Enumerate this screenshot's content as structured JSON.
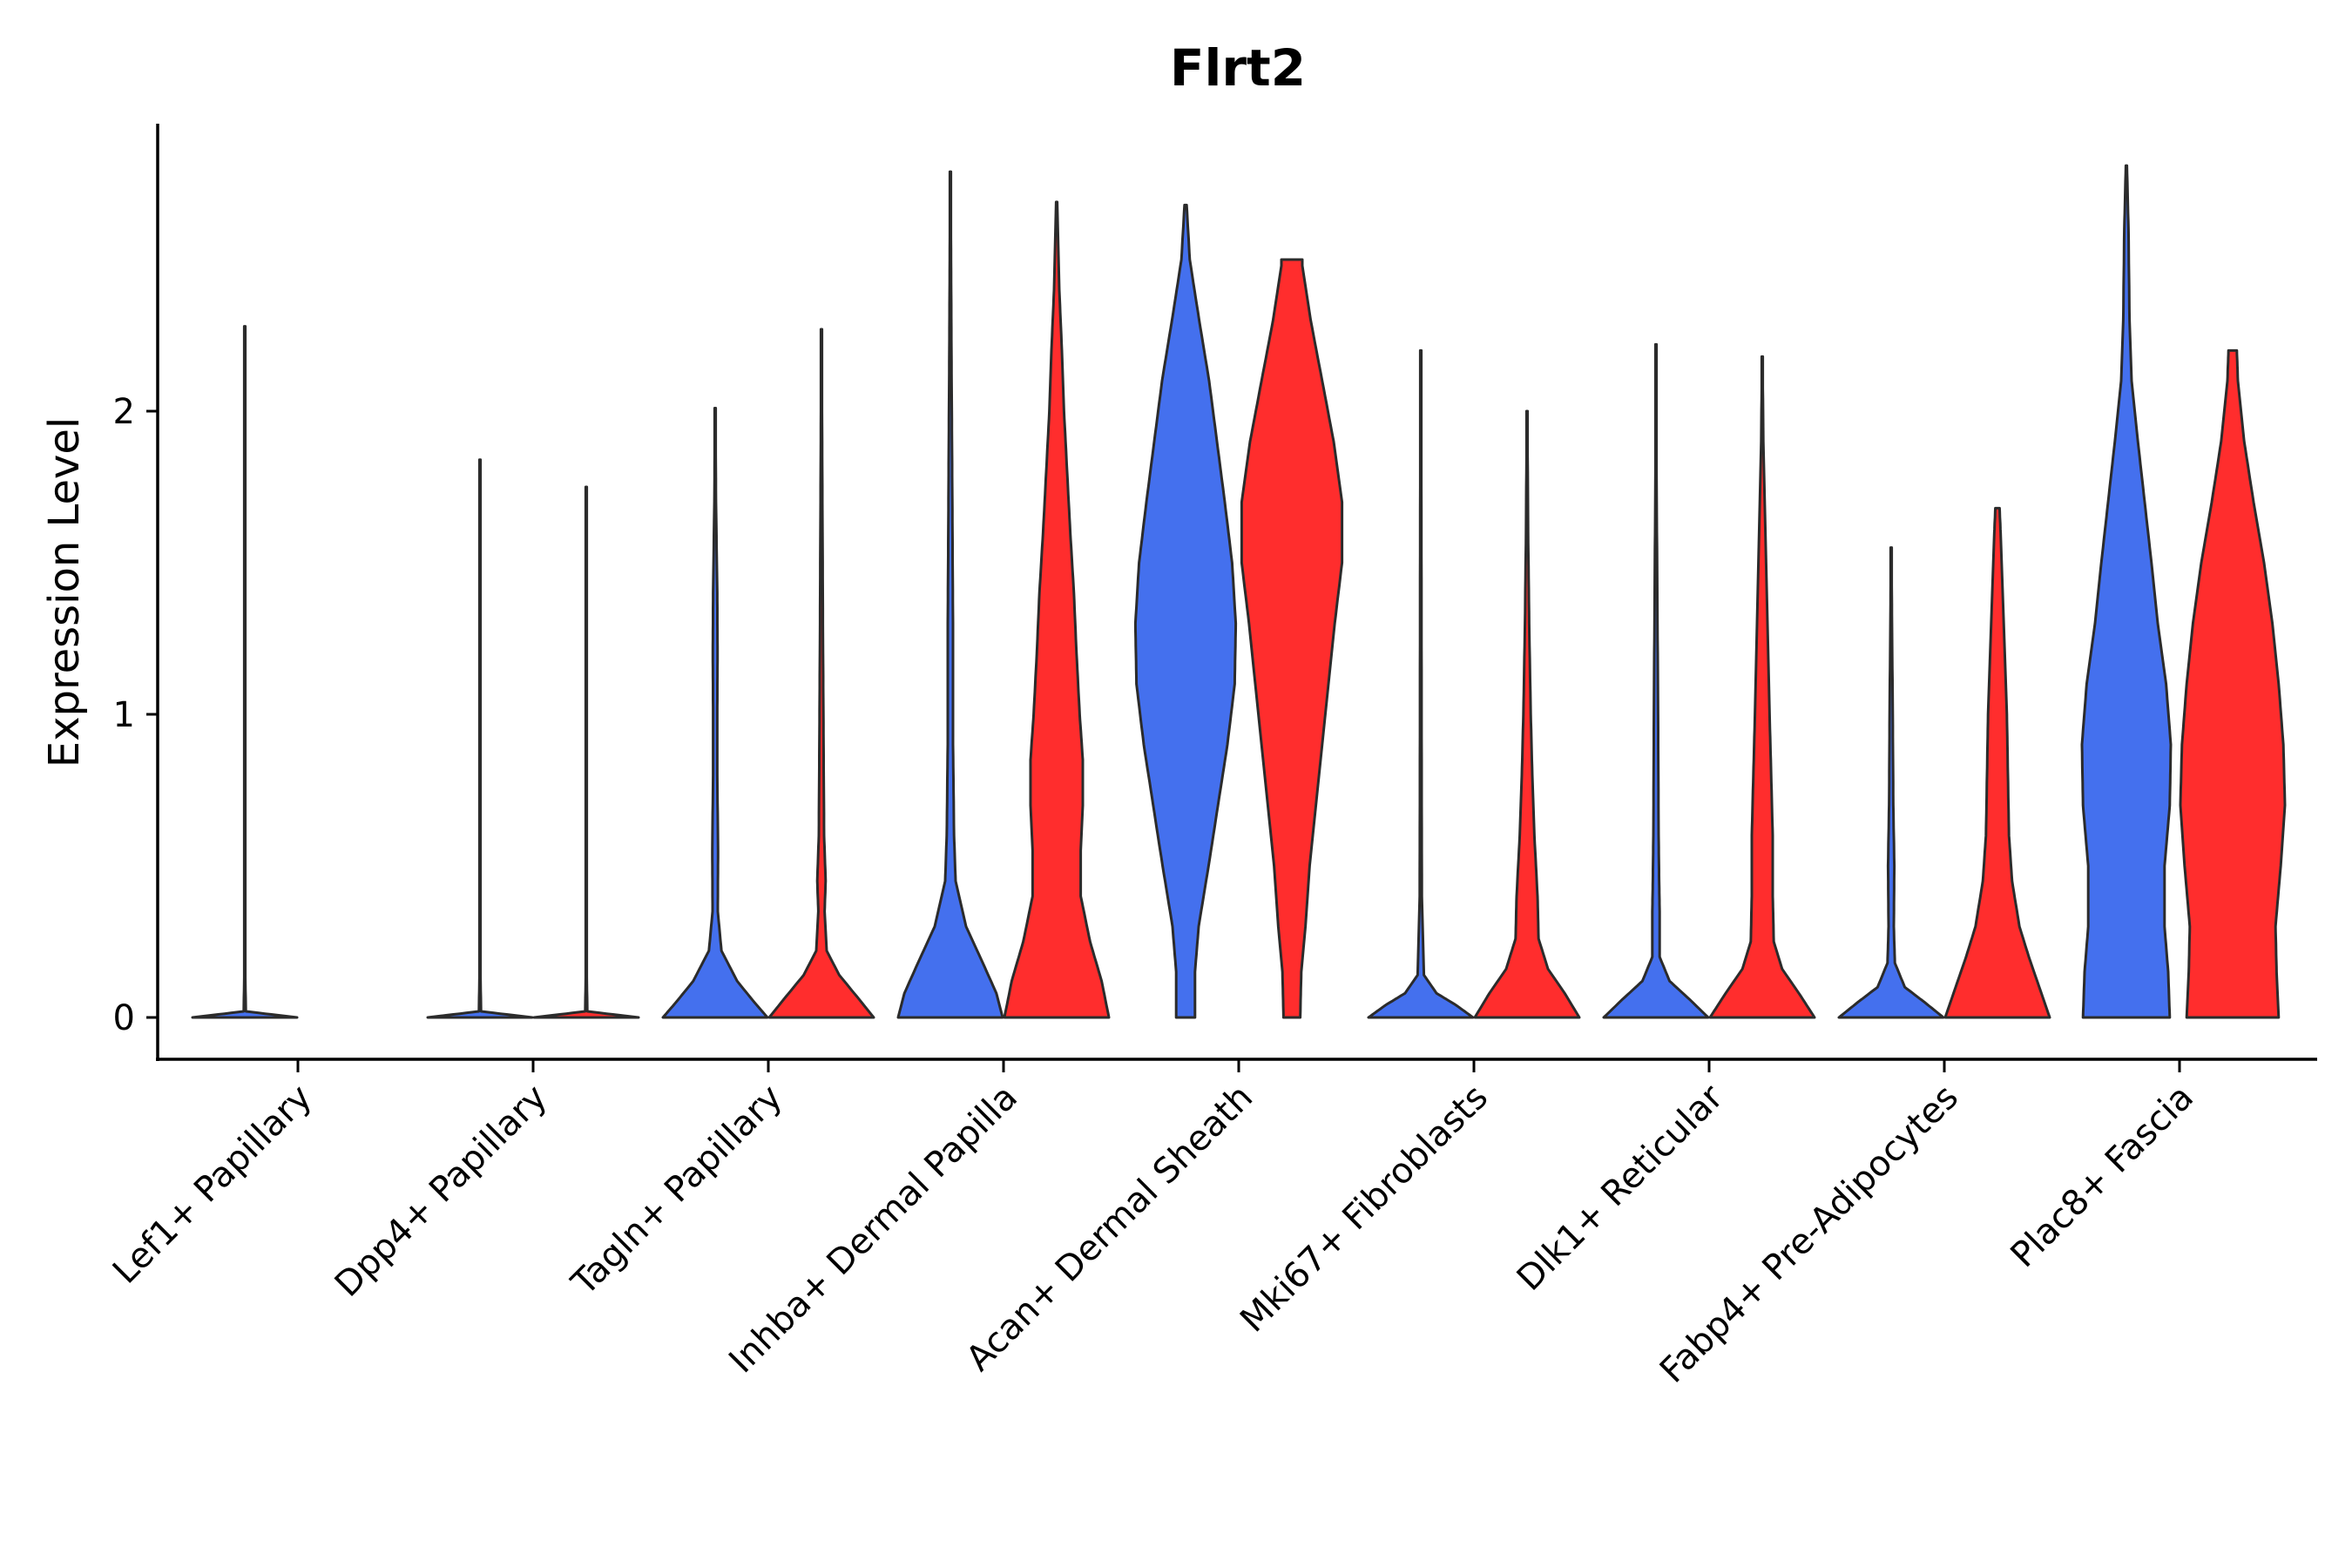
{
  "chart_data": {
    "type": "violin",
    "title": "Flrt2",
    "xlabel": "",
    "ylabel": "Expression Level",
    "ylim": [
      -0.14,
      2.95
    ],
    "yticks": [
      0,
      1,
      2
    ],
    "grid": false,
    "legend": "none",
    "categories": [
      "Lef1+ Papillary",
      "Dpp4+ Papillary",
      "Tagln+ Papillary",
      "Inhba+ Dermal Papilla",
      "Acan+ Dermal Sheath",
      "Mki67+ Fibroblasts",
      "Dlk1+ Reticular",
      "Fabp4+ Pre-Adipocytes",
      "Plac8+ Fascia"
    ],
    "series": [
      {
        "name": "group1",
        "color": "#4470EE",
        "values": [
          {
            "category": "Lef1+ Papillary",
            "max": 2.28,
            "profile": [
              [
                0,
                1.0
              ],
              [
                0.02,
                0.02
              ],
              [
                0.2,
                0.004
              ],
              [
                1.0,
                0.004
              ],
              [
                2.28,
                0.004
              ]
            ]
          },
          {
            "category": "Dpp4+ Papillary",
            "max": 1.84,
            "profile": [
              [
                0,
                1.0
              ],
              [
                0.02,
                0.02
              ],
              [
                0.2,
                0.004
              ],
              [
                1.0,
                0.004
              ],
              [
                1.84,
                0.004
              ]
            ]
          },
          {
            "category": "Tagln+ Papillary",
            "max": 2.01,
            "profile": [
              [
                0,
                1.0
              ],
              [
                0.05,
                0.75
              ],
              [
                0.12,
                0.42
              ],
              [
                0.22,
                0.12
              ],
              [
                0.35,
                0.05
              ],
              [
                0.55,
                0.055
              ],
              [
                0.8,
                0.04
              ],
              [
                1.0,
                0.04
              ],
              [
                1.2,
                0.045
              ],
              [
                1.4,
                0.04
              ],
              [
                1.7,
                0.015
              ],
              [
                2.01,
                0.005
              ]
            ]
          },
          {
            "category": "Inhba+ Dermal Papilla",
            "max": 2.79,
            "profile": [
              [
                0,
                1.0
              ],
              [
                0.08,
                0.88
              ],
              [
                0.18,
                0.62
              ],
              [
                0.3,
                0.3
              ],
              [
                0.45,
                0.1
              ],
              [
                0.6,
                0.07
              ],
              [
                0.9,
                0.05
              ],
              [
                1.3,
                0.05
              ],
              [
                1.6,
                0.04
              ],
              [
                1.9,
                0.03
              ],
              [
                2.2,
                0.02
              ],
              [
                2.5,
                0.012
              ],
              [
                2.79,
                0.005
              ]
            ]
          },
          {
            "category": "Acan+ Dermal Sheath",
            "max": 2.68,
            "profile": [
              [
                0,
                0.18
              ],
              [
                0.15,
                0.18
              ],
              [
                0.3,
                0.25
              ],
              [
                0.5,
                0.44
              ],
              [
                0.7,
                0.62
              ],
              [
                0.9,
                0.8
              ],
              [
                1.1,
                0.94
              ],
              [
                1.3,
                0.96
              ],
              [
                1.5,
                0.89
              ],
              [
                1.7,
                0.75
              ],
              [
                1.9,
                0.6
              ],
              [
                2.1,
                0.45
              ],
              [
                2.3,
                0.26
              ],
              [
                2.5,
                0.08
              ],
              [
                2.68,
                0.02
              ]
            ]
          },
          {
            "category": "Mki67+ Fibroblasts",
            "max": 2.2,
            "profile": [
              [
                0,
                1.0
              ],
              [
                0.04,
                0.68
              ],
              [
                0.08,
                0.3
              ],
              [
                0.14,
                0.06
              ],
              [
                0.4,
                0.02
              ],
              [
                1.0,
                0.015
              ],
              [
                1.6,
                0.012
              ],
              [
                2.2,
                0.005
              ]
            ]
          },
          {
            "category": "Dlk1+ Reticular",
            "max": 2.22,
            "profile": [
              [
                0,
                1.0
              ],
              [
                0.06,
                0.64
              ],
              [
                0.12,
                0.26
              ],
              [
                0.2,
                0.07
              ],
              [
                0.35,
                0.07
              ],
              [
                0.45,
                0.06
              ],
              [
                0.6,
                0.05
              ],
              [
                1.0,
                0.04
              ],
              [
                1.4,
                0.025
              ],
              [
                1.8,
                0.01
              ],
              [
                2.22,
                0.005
              ]
            ]
          },
          {
            "category": "Fabp4+ Pre-Adipocytes",
            "max": 1.55,
            "profile": [
              [
                0,
                1.0
              ],
              [
                0.05,
                0.64
              ],
              [
                0.1,
                0.26
              ],
              [
                0.18,
                0.07
              ],
              [
                0.3,
                0.05
              ],
              [
                0.5,
                0.06
              ],
              [
                0.7,
                0.04
              ],
              [
                1.0,
                0.03
              ],
              [
                1.3,
                0.015
              ],
              [
                1.55,
                0.005
              ]
            ]
          },
          {
            "category": "Plac8+ Fascia",
            "max": 2.81,
            "profile": [
              [
                0,
                0.83
              ],
              [
                0.15,
                0.8
              ],
              [
                0.3,
                0.73
              ],
              [
                0.5,
                0.73
              ],
              [
                0.7,
                0.83
              ],
              [
                0.9,
                0.85
              ],
              [
                1.1,
                0.76
              ],
              [
                1.3,
                0.6
              ],
              [
                1.5,
                0.48
              ],
              [
                1.7,
                0.35
              ],
              [
                1.9,
                0.22
              ],
              [
                2.1,
                0.1
              ],
              [
                2.3,
                0.06
              ],
              [
                2.6,
                0.04
              ],
              [
                2.81,
                0.01
              ]
            ]
          }
        ]
      },
      {
        "name": "group2",
        "color": "#FF2D2D",
        "values": [
          {
            "category": "Lef1+ Papillary",
            "max": 0.0,
            "profile": []
          },
          {
            "category": "Dpp4+ Papillary",
            "max": 1.75,
            "profile": [
              [
                0,
                1.0
              ],
              [
                0.02,
                0.02
              ],
              [
                0.2,
                0.004
              ],
              [
                1.0,
                0.004
              ],
              [
                1.75,
                0.004
              ]
            ]
          },
          {
            "category": "Tagln+ Papillary",
            "max": 2.27,
            "profile": [
              [
                0,
                1.0
              ],
              [
                0.06,
                0.72
              ],
              [
                0.14,
                0.34
              ],
              [
                0.22,
                0.1
              ],
              [
                0.35,
                0.06
              ],
              [
                0.45,
                0.08
              ],
              [
                0.6,
                0.05
              ],
              [
                0.9,
                0.04
              ],
              [
                1.2,
                0.03
              ],
              [
                1.6,
                0.02
              ],
              [
                2.0,
                0.01
              ],
              [
                2.27,
                0.005
              ]
            ]
          },
          {
            "category": "Inhba+ Dermal Papilla",
            "max": 2.69,
            "profile": [
              [
                0,
                1.0
              ],
              [
                0.12,
                0.86
              ],
              [
                0.25,
                0.64
              ],
              [
                0.4,
                0.46
              ],
              [
                0.55,
                0.46
              ],
              [
                0.7,
                0.5
              ],
              [
                0.85,
                0.5
              ],
              [
                1.0,
                0.44
              ],
              [
                1.2,
                0.38
              ],
              [
                1.4,
                0.33
              ],
              [
                1.6,
                0.26
              ],
              [
                1.8,
                0.2
              ],
              [
                2.0,
                0.14
              ],
              [
                2.2,
                0.1
              ],
              [
                2.4,
                0.05
              ],
              [
                2.69,
                0.01
              ]
            ]
          },
          {
            "category": "Acan+ Dermal Sheath",
            "max": 2.5,
            "profile": [
              [
                0,
                0.16
              ],
              [
                0.15,
                0.18
              ],
              [
                0.3,
                0.26
              ],
              [
                0.5,
                0.34
              ],
              [
                0.7,
                0.46
              ],
              [
                0.9,
                0.58
              ],
              [
                1.1,
                0.7
              ],
              [
                1.3,
                0.82
              ],
              [
                1.5,
                0.96
              ],
              [
                1.7,
                0.96
              ],
              [
                1.9,
                0.8
              ],
              [
                2.1,
                0.58
              ],
              [
                2.3,
                0.36
              ],
              [
                2.48,
                0.2
              ],
              [
                2.5,
                0.2
              ]
            ]
          },
          {
            "category": "Mki67+ Fibroblasts",
            "max": 2.0,
            "profile": [
              [
                0,
                1.0
              ],
              [
                0.08,
                0.72
              ],
              [
                0.16,
                0.4
              ],
              [
                0.26,
                0.22
              ],
              [
                0.4,
                0.2
              ],
              [
                0.6,
                0.14
              ],
              [
                0.8,
                0.1
              ],
              [
                1.0,
                0.07
              ],
              [
                1.3,
                0.04
              ],
              [
                1.6,
                0.02
              ],
              [
                2.0,
                0.005
              ]
            ]
          },
          {
            "category": "Dlk1+ Reticular",
            "max": 2.18,
            "profile": [
              [
                0,
                1.0
              ],
              [
                0.08,
                0.7
              ],
              [
                0.16,
                0.38
              ],
              [
                0.25,
                0.22
              ],
              [
                0.4,
                0.2
              ],
              [
                0.6,
                0.2
              ],
              [
                0.8,
                0.17
              ],
              [
                1.0,
                0.14
              ],
              [
                1.3,
                0.1
              ],
              [
                1.6,
                0.06
              ],
              [
                1.9,
                0.02
              ],
              [
                2.18,
                0.005
              ]
            ]
          },
          {
            "category": "Fabp4+ Pre-Adipocytes",
            "max": 1.68,
            "profile": [
              [
                0,
                1.0
              ],
              [
                0.1,
                0.8
              ],
              [
                0.2,
                0.6
              ],
              [
                0.3,
                0.42
              ],
              [
                0.45,
                0.28
              ],
              [
                0.6,
                0.22
              ],
              [
                0.8,
                0.2
              ],
              [
                1.0,
                0.18
              ],
              [
                1.2,
                0.14
              ],
              [
                1.4,
                0.1
              ],
              [
                1.6,
                0.06
              ],
              [
                1.68,
                0.04
              ]
            ]
          },
          {
            "category": "Plac8+ Fascia",
            "max": 2.2,
            "profile": [
              [
                0,
                0.88
              ],
              [
                0.15,
                0.84
              ],
              [
                0.3,
                0.82
              ],
              [
                0.5,
                0.92
              ],
              [
                0.7,
                1.0
              ],
              [
                0.9,
                0.97
              ],
              [
                1.1,
                0.88
              ],
              [
                1.3,
                0.76
              ],
              [
                1.5,
                0.6
              ],
              [
                1.7,
                0.4
              ],
              [
                1.9,
                0.22
              ],
              [
                2.1,
                0.1
              ],
              [
                2.2,
                0.08
              ]
            ]
          }
        ]
      }
    ]
  }
}
